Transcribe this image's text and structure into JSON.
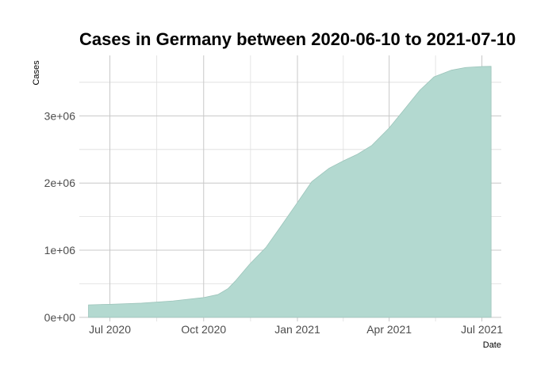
{
  "chart_data": {
    "type": "area",
    "title": "Cases in Germany between 2020-06-10 to 2021-07-10",
    "xlabel": "Date",
    "ylabel": "Cases",
    "x_tick_labels": [
      "Jul 2020",
      "Oct 2020",
      "Jan 2021",
      "Apr 2021",
      "Jul 2021"
    ],
    "x_ticks": [
      "2020-07-01",
      "2020-10-01",
      "2021-01-01",
      "2021-04-01",
      "2021-07-01"
    ],
    "y_tick_labels": [
      "0e+00",
      "1e+06",
      "2e+06",
      "3e+06"
    ],
    "y_ticks": [
      0,
      1000000,
      2000000,
      3000000
    ],
    "xlim": [
      "2020-06-01",
      "2021-07-20"
    ],
    "ylim": [
      -60000,
      3900000
    ],
    "grid": true,
    "fill_color": "#b3d9d0",
    "line_color": "#9cc4ba",
    "series": [
      {
        "x": [
          "2020-06-10",
          "2020-07-01",
          "2020-08-01",
          "2020-09-01",
          "2020-10-01",
          "2020-10-15",
          "2020-10-25",
          "2020-11-01",
          "2020-11-15",
          "2020-12-01",
          "2020-12-15",
          "2021-01-01",
          "2021-01-15",
          "2021-02-01",
          "2021-02-15",
          "2021-03-01",
          "2021-03-15",
          "2021-04-01",
          "2021-04-15",
          "2021-05-01",
          "2021-05-15",
          "2021-06-01",
          "2021-06-15",
          "2021-07-01",
          "2021-07-10"
        ],
        "y": [
          186000,
          195000,
          212000,
          245000,
          295000,
          340000,
          430000,
          540000,
          790000,
          1040000,
          1340000,
          1710000,
          2020000,
          2220000,
          2330000,
          2430000,
          2560000,
          2820000,
          3080000,
          3380000,
          3580000,
          3680000,
          3720000,
          3735000,
          3737000
        ]
      }
    ]
  }
}
